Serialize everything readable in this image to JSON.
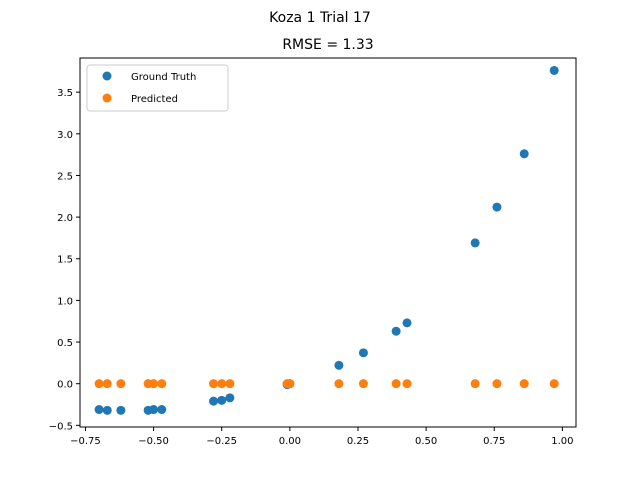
{
  "chart_data": {
    "type": "scatter",
    "suptitle": "Koza 1 Trial 17",
    "title": "RMSE = 1.33",
    "xlabel": "",
    "ylabel": "",
    "xlim": [
      -0.77,
      1.05
    ],
    "ylim": [
      -0.52,
      3.91
    ],
    "xticks": [
      -0.75,
      -0.5,
      -0.25,
      0.0,
      0.25,
      0.5,
      0.75,
      1.0
    ],
    "xtick_labels": [
      "−0.75",
      "−0.50",
      "−0.25",
      "0.00",
      "0.25",
      "0.50",
      "0.75",
      "1.00"
    ],
    "yticks": [
      -0.5,
      0.0,
      0.5,
      1.0,
      1.5,
      2.0,
      2.5,
      3.0,
      3.5
    ],
    "ytick_labels": [
      "−0.5",
      "0.0",
      "0.5",
      "1.0",
      "1.5",
      "2.0",
      "2.5",
      "3.0",
      "3.5"
    ],
    "grid": false,
    "legend_position": "upper-left",
    "series": [
      {
        "name": "Ground Truth",
        "color": "#1f77b4",
        "x": [
          -0.7,
          -0.67,
          -0.62,
          -0.52,
          -0.5,
          -0.47,
          -0.28,
          -0.25,
          -0.22,
          -0.01,
          0.0,
          0.18,
          0.27,
          0.39,
          0.43,
          0.68,
          0.76,
          0.86,
          0.97
        ],
        "y": [
          -0.31,
          -0.32,
          -0.32,
          -0.32,
          -0.31,
          -0.31,
          -0.21,
          -0.2,
          -0.17,
          -0.01,
          0.0,
          0.22,
          0.37,
          0.63,
          0.73,
          1.69,
          2.12,
          2.76,
          3.76
        ]
      },
      {
        "name": "Predicted",
        "color": "#ff7f0e",
        "x": [
          -0.7,
          -0.67,
          -0.62,
          -0.52,
          -0.5,
          -0.47,
          -0.28,
          -0.25,
          -0.22,
          -0.01,
          0.0,
          0.18,
          0.27,
          0.39,
          0.43,
          0.68,
          0.76,
          0.86,
          0.97
        ],
        "y": [
          0,
          0,
          0,
          0,
          0,
          0,
          0,
          0,
          0,
          0,
          0,
          0,
          0,
          0,
          0,
          0,
          0,
          0,
          0
        ]
      }
    ]
  }
}
